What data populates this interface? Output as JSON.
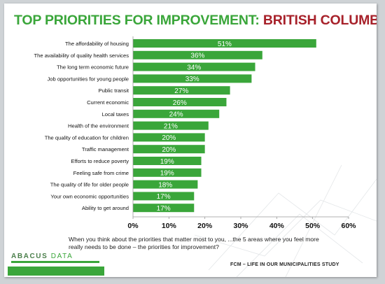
{
  "title": {
    "part1": "TOP PRIORITIES FOR IMPROVEMENT:",
    "part2": "BRITISH COLUMBIA"
  },
  "colors": {
    "bar": "#3aa63a",
    "title_green": "#3aa63a",
    "title_red": "#a7212a"
  },
  "chart_data": {
    "type": "bar",
    "orientation": "horizontal",
    "categories": [
      "The affordability of housing",
      "The availability of quality health services",
      "The long term economic future",
      "Job opportunities for young people",
      "Public transit",
      "Current economic",
      "Local taxes",
      "Health of the environment",
      "The quality of education for children",
      "Traffic management",
      "Efforts to reduce poverty",
      "Feeling safe from crime",
      "The quality of life for older people",
      "Your own economic opportunities",
      "Ability to get around"
    ],
    "values": [
      51,
      36,
      34,
      33,
      27,
      26,
      24,
      21,
      20,
      20,
      19,
      19,
      18,
      17,
      17
    ],
    "value_labels": [
      "51%",
      "36%",
      "34%",
      "33%",
      "27%",
      "26%",
      "24%",
      "21%",
      "20%",
      "20%",
      "19%",
      "19%",
      "18%",
      "17%",
      "17%"
    ],
    "xlim": [
      0,
      60
    ],
    "ticks": [
      0,
      10,
      20,
      30,
      40,
      50,
      60
    ],
    "tick_labels": [
      "0%",
      "10%",
      "20%",
      "30%",
      "40%",
      "50%",
      "60%"
    ],
    "grid": false,
    "legend": "none"
  },
  "question": "When you think about the priorities that matter most to you, ...the 5 areas where you feel more really needs to be done – the priorities for improvement?",
  "logo": {
    "word1": "ABACUS",
    "word2": "DATA"
  },
  "footer": "FCM – LIFE IN OUR MUNICIPALITIES STUDY"
}
